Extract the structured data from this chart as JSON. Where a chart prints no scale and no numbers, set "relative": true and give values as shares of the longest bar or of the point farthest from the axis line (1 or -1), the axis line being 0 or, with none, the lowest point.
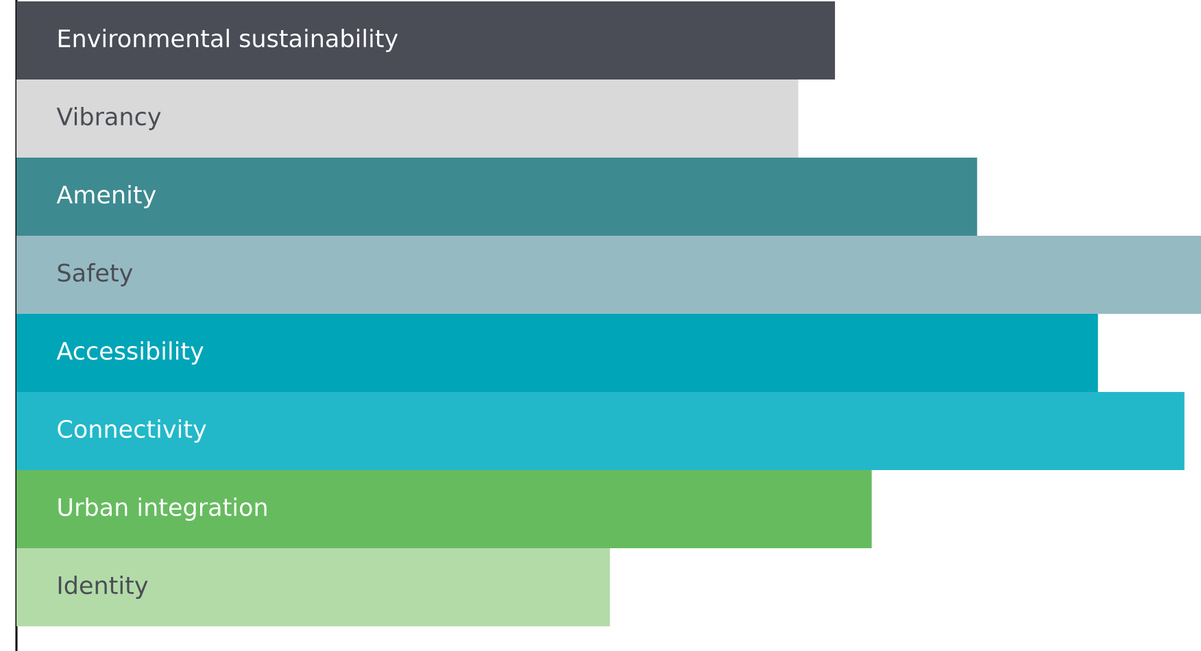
{
  "chart_data": {
    "type": "bar",
    "orientation": "horizontal",
    "relative": true,
    "categories": [
      "Environmental sustainability",
      "Vibrancy",
      "Amenity",
      "Safety",
      "Accessibility",
      "Connectivity",
      "Urban integration",
      "Identity"
    ],
    "values": [
      0.691,
      0.66,
      0.811,
      1,
      0.913,
      0.986,
      0.722,
      0.501
    ],
    "colors": [
      "#4a4d55",
      "#d9d9d9",
      "#3e8a91",
      "#96bac2",
      "#00a5b8",
      "#22b8c9",
      "#66bb5f",
      "#b3dba8"
    ]
  }
}
